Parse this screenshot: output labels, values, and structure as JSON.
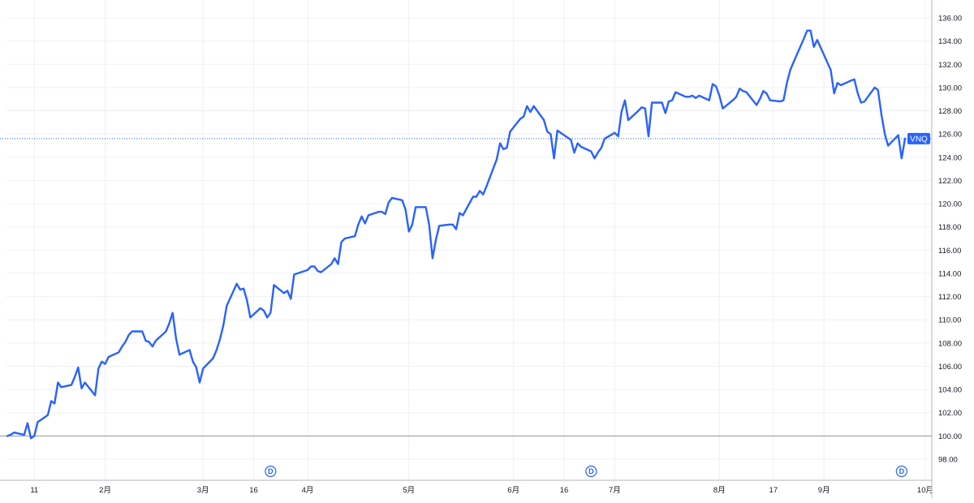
{
  "chart_data": {
    "type": "line",
    "symbol": "VNQ",
    "baseline": 100.0,
    "last_value": 125.6,
    "ylim": [
      96.6,
      137.0
    ],
    "y_ticks": [
      "98.00",
      "100.00",
      "102.00",
      "104.00",
      "106.00",
      "108.00",
      "110.00",
      "112.00",
      "114.00",
      "116.00",
      "118.00",
      "120.00",
      "122.00",
      "124.00",
      "126.00",
      "128.00",
      "130.00",
      "132.00",
      "134.00",
      "136.00"
    ],
    "x_ticks": [
      {
        "label": "11",
        "date": "2024-01-11"
      },
      {
        "label": "2月",
        "date": "2024-02-01"
      },
      {
        "label": "3月",
        "date": "2024-03-01"
      },
      {
        "label": "16",
        "date": "2024-03-16"
      },
      {
        "label": "4月",
        "date": "2024-04-01"
      },
      {
        "label": "5月",
        "date": "2024-05-01"
      },
      {
        "label": "6月",
        "date": "2024-06-01"
      },
      {
        "label": "16",
        "date": "2024-06-16"
      },
      {
        "label": "7月",
        "date": "2024-07-01"
      },
      {
        "label": "8月",
        "date": "2024-08-01"
      },
      {
        "label": "17",
        "date": "2024-08-17"
      },
      {
        "label": "9月",
        "date": "2024-09-01"
      },
      {
        "label": "10月",
        "date": "2024-10-01"
      }
    ],
    "markers": [
      {
        "label": "D",
        "date": "2024-03-21"
      },
      {
        "label": "D",
        "date": "2024-06-24"
      },
      {
        "label": "D",
        "date": "2024-09-24"
      }
    ],
    "series": [
      {
        "color": "#2962ff",
        "points": [
          [
            "2024-01-03",
            100.0
          ],
          [
            "2024-01-04",
            100.1
          ],
          [
            "2024-01-05",
            100.3
          ],
          [
            "2024-01-08",
            100.1
          ],
          [
            "2024-01-09",
            101.1
          ],
          [
            "2024-01-10",
            99.8
          ],
          [
            "2024-01-11",
            100.0
          ],
          [
            "2024-01-12",
            101.2
          ],
          [
            "2024-01-15",
            101.8
          ],
          [
            "2024-01-16",
            103.0
          ],
          [
            "2024-01-17",
            102.8
          ],
          [
            "2024-01-18",
            104.6
          ],
          [
            "2024-01-19",
            104.2
          ],
          [
            "2024-01-22",
            104.4
          ],
          [
            "2024-01-23",
            105.1
          ],
          [
            "2024-01-24",
            105.9
          ],
          [
            "2024-01-25",
            104.1
          ],
          [
            "2024-01-26",
            104.6
          ],
          [
            "2024-01-29",
            103.5
          ],
          [
            "2024-01-30",
            105.8
          ],
          [
            "2024-01-31",
            106.4
          ],
          [
            "2024-02-01",
            106.2
          ],
          [
            "2024-02-02",
            106.8
          ],
          [
            "2024-02-05",
            107.2
          ],
          [
            "2024-02-06",
            107.7
          ],
          [
            "2024-02-07",
            108.1
          ],
          [
            "2024-02-08",
            108.7
          ],
          [
            "2024-02-09",
            109.0
          ],
          [
            "2024-02-12",
            109.0
          ],
          [
            "2024-02-13",
            108.2
          ],
          [
            "2024-02-14",
            108.1
          ],
          [
            "2024-02-15",
            107.7
          ],
          [
            "2024-02-16",
            108.2
          ],
          [
            "2024-02-19",
            109.0
          ],
          [
            "2024-02-20",
            109.7
          ],
          [
            "2024-02-21",
            110.6
          ],
          [
            "2024-02-22",
            108.4
          ],
          [
            "2024-02-23",
            107.0
          ],
          [
            "2024-02-26",
            107.4
          ],
          [
            "2024-02-27",
            106.4
          ],
          [
            "2024-02-28",
            105.9
          ],
          [
            "2024-02-29",
            104.6
          ],
          [
            "2024-03-01",
            105.8
          ],
          [
            "2024-03-04",
            106.7
          ],
          [
            "2024-03-05",
            107.4
          ],
          [
            "2024-03-06",
            108.3
          ],
          [
            "2024-03-07",
            109.5
          ],
          [
            "2024-03-08",
            111.2
          ],
          [
            "2024-03-11",
            113.1
          ],
          [
            "2024-03-12",
            112.6
          ],
          [
            "2024-03-13",
            112.7
          ],
          [
            "2024-03-14",
            111.7
          ],
          [
            "2024-03-15",
            110.2
          ],
          [
            "2024-03-18",
            111.0
          ],
          [
            "2024-03-19",
            110.8
          ],
          [
            "2024-03-20",
            110.2
          ],
          [
            "2024-03-21",
            110.6
          ],
          [
            "2024-03-22",
            113.0
          ],
          [
            "2024-03-25",
            112.3
          ],
          [
            "2024-03-26",
            112.5
          ],
          [
            "2024-03-27",
            111.8
          ],
          [
            "2024-03-28",
            113.9
          ],
          [
            "2024-04-01",
            114.3
          ],
          [
            "2024-04-02",
            114.6
          ],
          [
            "2024-04-03",
            114.6
          ],
          [
            "2024-04-04",
            114.2
          ],
          [
            "2024-04-05",
            114.1
          ],
          [
            "2024-04-08",
            114.8
          ],
          [
            "2024-04-09",
            115.3
          ],
          [
            "2024-04-10",
            114.8
          ],
          [
            "2024-04-11",
            116.7
          ],
          [
            "2024-04-12",
            117.0
          ],
          [
            "2024-04-15",
            117.2
          ],
          [
            "2024-04-16",
            118.2
          ],
          [
            "2024-04-17",
            118.9
          ],
          [
            "2024-04-18",
            118.3
          ],
          [
            "2024-04-19",
            119.0
          ],
          [
            "2024-04-22",
            119.3
          ],
          [
            "2024-04-23",
            119.3
          ],
          [
            "2024-04-24",
            119.1
          ],
          [
            "2024-04-25",
            120.1
          ],
          [
            "2024-04-26",
            120.5
          ],
          [
            "2024-04-29",
            120.3
          ],
          [
            "2024-04-30",
            119.5
          ],
          [
            "2024-05-01",
            117.6
          ],
          [
            "2024-05-02",
            118.2
          ],
          [
            "2024-05-03",
            119.7
          ],
          [
            "2024-05-06",
            119.7
          ],
          [
            "2024-05-07",
            118.2
          ],
          [
            "2024-05-08",
            115.3
          ],
          [
            "2024-05-09",
            116.9
          ],
          [
            "2024-05-10",
            118.1
          ],
          [
            "2024-05-13",
            118.2
          ],
          [
            "2024-05-14",
            118.2
          ],
          [
            "2024-05-15",
            117.8
          ],
          [
            "2024-05-16",
            119.2
          ],
          [
            "2024-05-17",
            119.0
          ],
          [
            "2024-05-20",
            120.6
          ],
          [
            "2024-05-21",
            120.6
          ],
          [
            "2024-05-22",
            121.1
          ],
          [
            "2024-05-23",
            120.8
          ],
          [
            "2024-05-24",
            121.5
          ],
          [
            "2024-05-27",
            123.8
          ],
          [
            "2024-05-28",
            125.2
          ],
          [
            "2024-05-29",
            124.7
          ],
          [
            "2024-05-30",
            124.8
          ],
          [
            "2024-05-31",
            126.2
          ],
          [
            "2024-06-03",
            127.3
          ],
          [
            "2024-06-04",
            127.5
          ],
          [
            "2024-06-05",
            128.4
          ],
          [
            "2024-06-06",
            127.9
          ],
          [
            "2024-06-07",
            128.4
          ],
          [
            "2024-06-10",
            127.2
          ],
          [
            "2024-06-11",
            126.2
          ],
          [
            "2024-06-12",
            126.0
          ],
          [
            "2024-06-13",
            123.9
          ],
          [
            "2024-06-14",
            126.3
          ],
          [
            "2024-06-17",
            125.7
          ],
          [
            "2024-06-18",
            125.5
          ],
          [
            "2024-06-19",
            124.4
          ],
          [
            "2024-06-20",
            125.2
          ],
          [
            "2024-06-21",
            124.9
          ],
          [
            "2024-06-24",
            124.5
          ],
          [
            "2024-06-25",
            123.9
          ],
          [
            "2024-06-26",
            124.4
          ],
          [
            "2024-06-27",
            124.8
          ],
          [
            "2024-06-28",
            125.6
          ],
          [
            "2024-07-01",
            126.1
          ],
          [
            "2024-07-02",
            125.8
          ],
          [
            "2024-07-03",
            127.9
          ],
          [
            "2024-07-04",
            128.9
          ],
          [
            "2024-07-05",
            127.2
          ],
          [
            "2024-07-08",
            128.0
          ],
          [
            "2024-07-09",
            128.3
          ],
          [
            "2024-07-10",
            128.2
          ],
          [
            "2024-07-11",
            125.8
          ],
          [
            "2024-07-12",
            128.7
          ],
          [
            "2024-07-15",
            128.7
          ],
          [
            "2024-07-16",
            127.8
          ],
          [
            "2024-07-17",
            128.8
          ],
          [
            "2024-07-18",
            128.9
          ],
          [
            "2024-07-19",
            129.6
          ],
          [
            "2024-07-22",
            129.2
          ],
          [
            "2024-07-23",
            129.2
          ],
          [
            "2024-07-24",
            129.3
          ],
          [
            "2024-07-25",
            129.1
          ],
          [
            "2024-07-26",
            129.3
          ],
          [
            "2024-07-29",
            128.9
          ],
          [
            "2024-07-30",
            130.3
          ],
          [
            "2024-07-31",
            130.1
          ],
          [
            "2024-08-01",
            129.3
          ],
          [
            "2024-08-02",
            128.2
          ],
          [
            "2024-08-05",
            128.9
          ],
          [
            "2024-08-06",
            129.2
          ],
          [
            "2024-08-07",
            129.9
          ],
          [
            "2024-08-08",
            129.7
          ],
          [
            "2024-08-09",
            129.6
          ],
          [
            "2024-08-12",
            128.5
          ],
          [
            "2024-08-13",
            129.0
          ],
          [
            "2024-08-14",
            129.7
          ],
          [
            "2024-08-15",
            129.5
          ],
          [
            "2024-08-16",
            128.9
          ],
          [
            "2024-08-19",
            128.8
          ],
          [
            "2024-08-20",
            128.9
          ],
          [
            "2024-08-21",
            130.4
          ],
          [
            "2024-08-22",
            131.5
          ],
          [
            "2024-08-23",
            132.2
          ],
          [
            "2024-08-26",
            134.2
          ],
          [
            "2024-08-27",
            134.9
          ],
          [
            "2024-08-28",
            134.9
          ],
          [
            "2024-08-29",
            133.5
          ],
          [
            "2024-08-30",
            134.1
          ],
          [
            "2024-09-03",
            131.5
          ],
          [
            "2024-09-04",
            129.5
          ],
          [
            "2024-09-05",
            130.4
          ],
          [
            "2024-09-06",
            130.2
          ],
          [
            "2024-09-09",
            130.6
          ],
          [
            "2024-09-10",
            130.7
          ],
          [
            "2024-09-11",
            129.5
          ],
          [
            "2024-09-12",
            128.7
          ],
          [
            "2024-09-13",
            128.8
          ],
          [
            "2024-09-16",
            130.0
          ],
          [
            "2024-09-17",
            129.8
          ],
          [
            "2024-09-18",
            127.7
          ],
          [
            "2024-09-19",
            126.0
          ],
          [
            "2024-09-20",
            125.0
          ],
          [
            "2024-09-23",
            125.9
          ],
          [
            "2024-09-24",
            123.9
          ],
          [
            "2024-09-25",
            125.6
          ]
        ]
      }
    ]
  }
}
